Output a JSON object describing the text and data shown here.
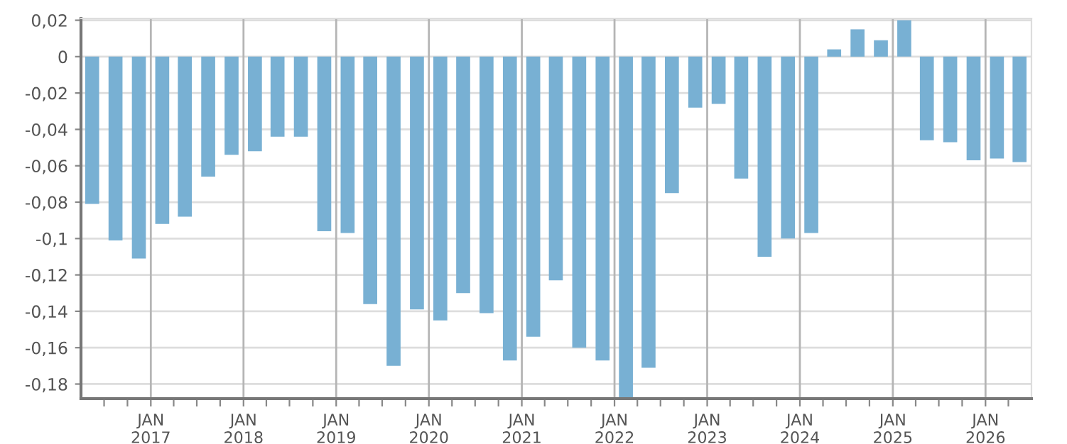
{
  "chart_data": {
    "type": "bar",
    "color": "#78b0d3",
    "x": [
      "2016-05-15",
      "2016-08-15",
      "2016-11-15",
      "2017-02-15",
      "2017-05-15",
      "2017-08-15",
      "2017-11-15",
      "2018-02-15",
      "2018-05-15",
      "2018-08-15",
      "2018-11-15",
      "2019-02-15",
      "2019-05-15",
      "2019-08-15",
      "2019-11-15",
      "2020-02-15",
      "2020-05-15",
      "2020-08-15",
      "2020-11-15",
      "2021-02-15",
      "2021-05-15",
      "2021-08-15",
      "2021-11-15",
      "2022-02-15",
      "2022-05-15",
      "2022-08-15",
      "2022-11-15",
      "2023-02-15",
      "2023-05-15",
      "2023-08-15",
      "2023-11-15",
      "2024-02-15",
      "2024-05-15",
      "2024-08-15",
      "2024-11-15",
      "2025-02-15",
      "2025-05-15",
      "2025-08-15",
      "2025-11-15",
      "2026-02-15",
      "2026-05-15"
    ],
    "values": [
      -0.081,
      -0.101,
      -0.111,
      -0.092,
      -0.088,
      -0.066,
      -0.054,
      -0.052,
      -0.044,
      -0.044,
      -0.096,
      -0.097,
      -0.136,
      -0.17,
      -0.139,
      -0.145,
      -0.13,
      -0.141,
      -0.167,
      -0.154,
      -0.123,
      -0.16,
      -0.167,
      -0.188,
      -0.171,
      -0.075,
      -0.028,
      -0.026,
      -0.067,
      -0.11,
      -0.1,
      -0.097,
      0.004,
      0.015,
      0.009,
      0.02,
      -0.046,
      -0.047,
      -0.057,
      -0.056,
      -0.058
    ],
    "xlim": [
      "2016-04-01",
      "2026-07-01"
    ],
    "xticks": [
      {
        "value": "2016-07-01",
        "label": null
      },
      {
        "value": "2016-10-01",
        "label": null
      },
      {
        "value": "2017-01-01",
        "label": "JAN\n2017"
      },
      {
        "value": "2017-04-01",
        "label": null
      },
      {
        "value": "2017-07-01",
        "label": null
      },
      {
        "value": "2017-10-01",
        "label": null
      },
      {
        "value": "2018-01-01",
        "label": "JAN\n2018"
      },
      {
        "value": "2018-04-01",
        "label": null
      },
      {
        "value": "2018-07-01",
        "label": null
      },
      {
        "value": "2018-10-01",
        "label": null
      },
      {
        "value": "2019-01-01",
        "label": "JAN\n2019"
      },
      {
        "value": "2019-04-01",
        "label": null
      },
      {
        "value": "2019-07-01",
        "label": null
      },
      {
        "value": "2019-10-01",
        "label": null
      },
      {
        "value": "2020-01-01",
        "label": "JAN\n2020"
      },
      {
        "value": "2020-04-01",
        "label": null
      },
      {
        "value": "2020-07-01",
        "label": null
      },
      {
        "value": "2020-10-01",
        "label": null
      },
      {
        "value": "2021-01-01",
        "label": "JAN\n2021"
      },
      {
        "value": "2021-04-01",
        "label": null
      },
      {
        "value": "2021-07-01",
        "label": null
      },
      {
        "value": "2021-10-01",
        "label": null
      },
      {
        "value": "2022-01-01",
        "label": "JAN\n2022"
      },
      {
        "value": "2022-04-01",
        "label": null
      },
      {
        "value": "2022-07-01",
        "label": null
      },
      {
        "value": "2022-10-01",
        "label": null
      },
      {
        "value": "2023-01-01",
        "label": "JAN\n2023"
      },
      {
        "value": "2023-04-01",
        "label": null
      },
      {
        "value": "2023-07-01",
        "label": null
      },
      {
        "value": "2023-10-01",
        "label": null
      },
      {
        "value": "2024-01-01",
        "label": "JAN\n2024"
      },
      {
        "value": "2024-04-01",
        "label": null
      },
      {
        "value": "2024-07-01",
        "label": null
      },
      {
        "value": "2024-10-01",
        "label": null
      },
      {
        "value": "2025-01-01",
        "label": "JAN\n2025"
      },
      {
        "value": "2025-04-01",
        "label": null
      },
      {
        "value": "2025-07-01",
        "label": null
      },
      {
        "value": "2025-10-01",
        "label": null
      },
      {
        "value": "2026-01-01",
        "label": "JAN\n2026"
      },
      {
        "value": "2026-04-01",
        "label": null
      }
    ],
    "ylim": [
      -0.188,
      0.021
    ],
    "yticks": [
      {
        "value": 0.02,
        "label": "0,02"
      },
      0,
      {
        "value": -0.02,
        "label": "-0,02"
      },
      {
        "value": -0.04,
        "label": "-0,04"
      },
      {
        "value": -0.06,
        "label": "-0,06"
      },
      {
        "value": -0.08,
        "label": "-0,08"
      },
      {
        "value": -0.1,
        "label": "-0,1"
      },
      {
        "value": -0.12,
        "label": "-0,12"
      },
      {
        "value": -0.14,
        "label": "-0,14"
      },
      {
        "value": -0.16,
        "label": "-0,16"
      },
      {
        "value": -0.18,
        "label": "-0,18"
      }
    ],
    "grid": true
  }
}
